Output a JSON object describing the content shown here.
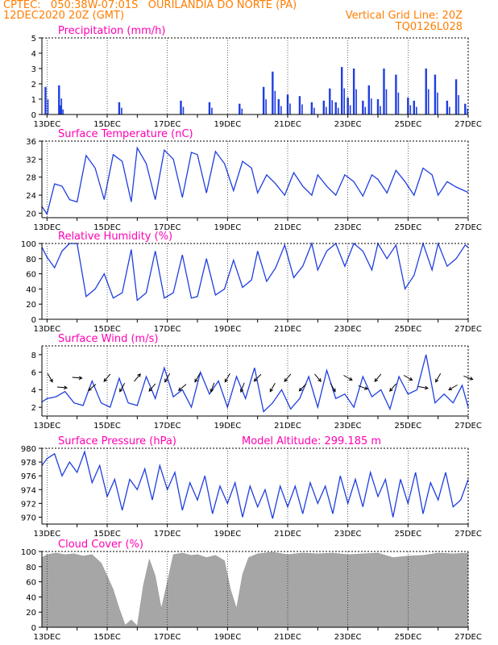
{
  "header": {
    "line1": "CPTEC:   050:38W-07:01S   OURILANDIA DO NORTE (PA)",
    "line2": "12DEC2020 20Z (GMT)",
    "grid_note": "Vertical Grid Line: 20Z",
    "code": "TQ0126L028"
  },
  "colors": {
    "header": "#ff7d00",
    "title": "#ff00b4",
    "line": "#1f3ee0",
    "cloud": "#a6a6a6",
    "arrow": "#000000"
  },
  "chart_data": [
    {
      "id": "precip",
      "type": "bar",
      "title": "Precipitation (mm/h)",
      "ylim": [
        0,
        5
      ],
      "yticks": [
        0,
        1,
        2,
        3,
        4,
        5
      ],
      "xlabels": [
        "13DEC",
        "15DEC",
        "17DEC",
        "19DEC",
        "21DEC",
        "23DEC",
        "25DEC",
        "27DEC"
      ],
      "x_start_day": 12.83,
      "x_end_day": 27.0,
      "day_values": [
        12.95,
        13.4,
        13.45,
        15.4,
        17.45,
        18.4,
        19.4,
        20.2,
        20.5,
        20.7,
        21.0,
        21.4,
        21.8,
        22.2,
        22.4,
        22.6,
        22.8,
        23.0,
        23.2,
        23.5,
        23.7,
        24.0,
        24.2,
        24.6,
        25.0,
        25.2,
        25.6,
        25.9,
        26.3,
        26.6,
        26.9
      ],
      "values": [
        1.8,
        1.9,
        0.6,
        0.8,
        0.9,
        0.8,
        0.7,
        1.8,
        2.8,
        1.0,
        1.3,
        1.2,
        0.8,
        0.9,
        1.7,
        0.8,
        3.1,
        1.1,
        3.0,
        0.9,
        1.9,
        1.0,
        3.0,
        2.6,
        1.1,
        0.9,
        3.0,
        2.6,
        0.9,
        2.3,
        0.7
      ]
    },
    {
      "id": "temp",
      "type": "line",
      "title": "Surface Temperature (nC)",
      "ylim": [
        19,
        36
      ],
      "yticks": [
        20,
        24,
        28,
        32,
        36
      ],
      "xlabels": [
        "13DEC",
        "15DEC",
        "17DEC",
        "19DEC",
        "21DEC",
        "23DEC",
        "25DEC",
        "27DEC"
      ],
      "x_start_day": 12.83,
      "x_end_day": 27.0,
      "x": [
        12.83,
        13.0,
        13.25,
        13.5,
        13.75,
        14.0,
        14.3,
        14.6,
        14.9,
        15.2,
        15.5,
        15.8,
        16.0,
        16.3,
        16.6,
        16.9,
        17.2,
        17.5,
        17.8,
        18.0,
        18.3,
        18.6,
        18.9,
        19.2,
        19.5,
        19.8,
        20.0,
        20.3,
        20.6,
        20.9,
        21.2,
        21.5,
        21.8,
        22.0,
        22.3,
        22.6,
        22.9,
        23.2,
        23.5,
        23.8,
        24.0,
        24.3,
        24.6,
        24.9,
        25.2,
        25.5,
        25.8,
        26.0,
        26.3,
        26.6,
        26.9,
        27.0
      ],
      "values": [
        21.5,
        19.8,
        26.5,
        26.0,
        23.0,
        22.5,
        32.8,
        30.0,
        23.0,
        33.0,
        31.5,
        22.5,
        34.5,
        31.0,
        23.0,
        34.0,
        32.0,
        23.5,
        33.5,
        33.0,
        24.5,
        33.7,
        31.0,
        25.0,
        31.5,
        30.0,
        24.5,
        28.5,
        26.5,
        24.0,
        29.0,
        26.0,
        24.0,
        28.5,
        26.0,
        24.0,
        28.5,
        27.0,
        23.8,
        28.5,
        27.5,
        24.5,
        29.5,
        27.0,
        24.0,
        30.0,
        28.5,
        24.0,
        27.0,
        25.8,
        24.9,
        24.6
      ]
    },
    {
      "id": "rh",
      "type": "line",
      "title": "Relative Humidity (%)",
      "ylim": [
        0,
        100
      ],
      "yticks": [
        0,
        20,
        40,
        60,
        80,
        100
      ],
      "xlabels": [
        "13DEC",
        "15DEC",
        "17DEC",
        "19DEC",
        "21DEC",
        "23DEC",
        "25DEC",
        "27DEC"
      ],
      "x_start_day": 12.83,
      "x_end_day": 27.0,
      "x": [
        12.83,
        13.0,
        13.25,
        13.5,
        13.75,
        14.0,
        14.3,
        14.6,
        14.9,
        15.2,
        15.5,
        15.8,
        16.0,
        16.3,
        16.6,
        16.9,
        17.2,
        17.5,
        17.8,
        18.0,
        18.3,
        18.6,
        18.9,
        19.2,
        19.5,
        19.8,
        20.0,
        20.3,
        20.6,
        20.9,
        21.2,
        21.5,
        21.8,
        22.0,
        22.3,
        22.6,
        22.9,
        23.2,
        23.5,
        23.8,
        24.0,
        24.3,
        24.6,
        24.9,
        25.2,
        25.5,
        25.8,
        26.0,
        26.3,
        26.6,
        26.9,
        27.0
      ],
      "values": [
        95,
        82,
        68,
        90,
        100,
        100,
        30,
        40,
        60,
        28,
        35,
        92,
        25,
        35,
        90,
        28,
        35,
        85,
        28,
        30,
        80,
        32,
        40,
        78,
        42,
        52,
        90,
        50,
        68,
        98,
        55,
        70,
        100,
        65,
        90,
        100,
        70,
        100,
        90,
        65,
        100,
        80,
        98,
        40,
        58,
        100,
        65,
        100,
        70,
        80,
        98,
        95
      ]
    },
    {
      "id": "wind",
      "type": "line",
      "title": "Surface Wind (m/s)",
      "ylim": [
        1,
        9
      ],
      "yticks": [
        2,
        4,
        6,
        8
      ],
      "xlabels": [
        "13DEC",
        "15DEC",
        "17DEC",
        "19DEC",
        "21DEC",
        "23DEC",
        "25DEC",
        "27DEC"
      ],
      "x_start_day": 12.83,
      "x_end_day": 27.0,
      "x": [
        12.83,
        13.0,
        13.3,
        13.6,
        13.9,
        14.2,
        14.5,
        14.8,
        15.1,
        15.4,
        15.7,
        16.0,
        16.3,
        16.6,
        16.9,
        17.2,
        17.5,
        17.8,
        18.1,
        18.4,
        18.7,
        19.0,
        19.3,
        19.6,
        19.9,
        20.2,
        20.5,
        20.8,
        21.1,
        21.4,
        21.7,
        22.0,
        22.3,
        22.6,
        22.9,
        23.2,
        23.5,
        23.8,
        24.1,
        24.4,
        24.7,
        25.0,
        25.3,
        25.6,
        25.9,
        26.2,
        26.5,
        26.8,
        27.0
      ],
      "values": [
        2.6,
        3.0,
        3.2,
        3.8,
        2.5,
        2.2,
        5.0,
        2.5,
        2.0,
        5.3,
        2.5,
        2.2,
        5.5,
        3.0,
        6.5,
        3.2,
        4.0,
        2.0,
        6.0,
        3.5,
        5.0,
        2.0,
        5.5,
        3.0,
        6.5,
        1.5,
        2.5,
        4.0,
        1.8,
        3.0,
        5.5,
        2.0,
        6.2,
        3.0,
        3.5,
        2.0,
        5.5,
        3.2,
        4.0,
        1.8,
        5.5,
        3.5,
        4.0,
        8.0,
        2.5,
        3.5,
        2.5,
        4.5,
        2.0
      ]
    },
    {
      "id": "pres",
      "type": "line",
      "title": "Surface Pressure (hPa)",
      "subtitle": "Model Altitude: 299.185 m",
      "ylim": [
        969,
        980
      ],
      "yticks": [
        970,
        972,
        974,
        976,
        978,
        980
      ],
      "xlabels": [
        "13DEC",
        "15DEC",
        "17DEC",
        "19DEC",
        "21DEC",
        "23DEC",
        "25DEC",
        "27DEC"
      ],
      "x_start_day": 12.83,
      "x_end_day": 27.0,
      "x": [
        12.83,
        13.0,
        13.25,
        13.5,
        13.75,
        14.0,
        14.25,
        14.5,
        14.75,
        15.0,
        15.25,
        15.5,
        15.75,
        16.0,
        16.25,
        16.5,
        16.75,
        17.0,
        17.25,
        17.5,
        17.75,
        18.0,
        18.25,
        18.5,
        18.75,
        19.0,
        19.25,
        19.5,
        19.75,
        20.0,
        20.25,
        20.5,
        20.75,
        21.0,
        21.25,
        21.5,
        21.75,
        22.0,
        22.25,
        22.5,
        22.75,
        23.0,
        23.25,
        23.5,
        23.75,
        24.0,
        24.25,
        24.5,
        24.75,
        25.0,
        25.25,
        25.5,
        25.75,
        26.0,
        26.25,
        26.5,
        26.75,
        27.0
      ],
      "values": [
        977.5,
        978.5,
        979.2,
        976.0,
        978.0,
        976.5,
        979.5,
        975.0,
        977.5,
        973.0,
        975.5,
        971.0,
        975.5,
        974.0,
        977.0,
        972.5,
        977.5,
        974.0,
        976.5,
        971.0,
        975.0,
        972.5,
        976.0,
        970.5,
        974.5,
        972.0,
        975.0,
        970.0,
        974.5,
        971.5,
        974.0,
        969.8,
        974.5,
        971.5,
        974.5,
        970.5,
        975.0,
        972.0,
        974.5,
        970.5,
        976.0,
        972.0,
        975.5,
        971.5,
        976.5,
        973.0,
        975.5,
        970.0,
        975.5,
        972.0,
        976.5,
        970.5,
        975.0,
        972.5,
        976.5,
        971.5,
        972.5,
        975.5
      ]
    },
    {
      "id": "cloud",
      "type": "area",
      "title": "Cloud Cover (%)",
      "ylim": [
        0,
        100
      ],
      "yticks": [
        0,
        20,
        40,
        60,
        80,
        100
      ],
      "xlabels": [
        "13DEC",
        "15DEC",
        "17DEC",
        "19DEC",
        "21DEC",
        "23DEC",
        "25DEC",
        "27DEC"
      ],
      "x_start_day": 12.83,
      "x_end_day": 27.0,
      "x": [
        12.83,
        13.0,
        13.3,
        13.6,
        13.9,
        14.2,
        14.5,
        14.8,
        15.0,
        15.2,
        15.4,
        15.6,
        15.8,
        16.0,
        16.2,
        16.4,
        16.6,
        16.8,
        17.0,
        17.2,
        17.5,
        17.8,
        18.0,
        18.3,
        18.6,
        18.9,
        19.1,
        19.3,
        19.5,
        19.7,
        20.0,
        20.5,
        21.0,
        21.5,
        22.0,
        22.5,
        23.0,
        23.5,
        24.0,
        24.5,
        25.0,
        25.5,
        26.0,
        26.5,
        27.0
      ],
      "values": [
        92,
        96,
        98,
        96,
        97,
        94,
        96,
        85,
        68,
        50,
        25,
        3,
        10,
        2,
        55,
        90,
        68,
        25,
        60,
        96,
        98,
        95,
        96,
        92,
        95,
        88,
        50,
        25,
        70,
        92,
        97,
        99,
        96,
        98,
        97,
        98,
        96,
        97,
        98,
        92,
        94,
        95,
        98,
        97,
        98
      ]
    }
  ],
  "wind_vectors": {
    "x_days": [
      13.1,
      13.5,
      14.0,
      14.5,
      15.0,
      15.5,
      16.0,
      16.5,
      17.0,
      17.5,
      18.0,
      18.5,
      19.0,
      19.5,
      20.0,
      20.5,
      21.0,
      21.5,
      22.0,
      22.5,
      23.0,
      23.5,
      24.0,
      24.5,
      25.0,
      25.5,
      26.0,
      26.5,
      27.0
    ],
    "dir_deg": [
      150,
      95,
      95,
      230,
      220,
      210,
      40,
      220,
      210,
      230,
      210,
      200,
      210,
      200,
      225,
      210,
      220,
      225,
      140,
      150,
      120,
      110,
      220,
      220,
      120,
      100,
      210,
      240,
      110
    ]
  }
}
